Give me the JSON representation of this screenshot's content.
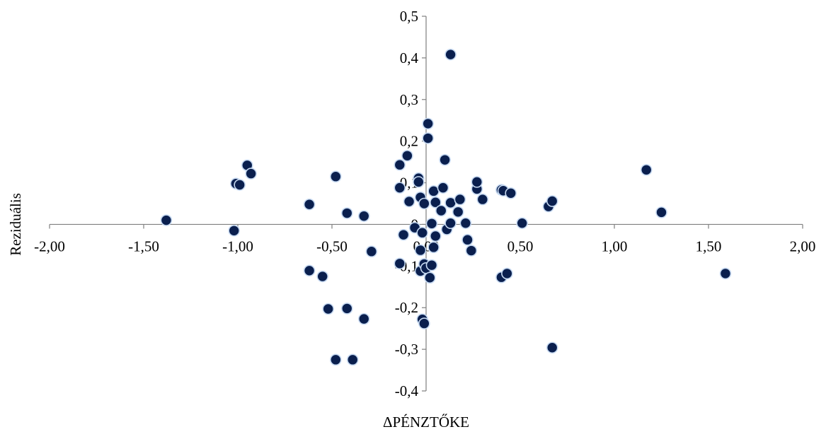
{
  "chart_data": {
    "type": "scatter",
    "title": "",
    "xlabel": "ΔPÉNZTŐKE",
    "ylabel": "Reziduális",
    "xlim": [
      -2.0,
      2.0
    ],
    "ylim": [
      -0.4,
      0.5
    ],
    "xticks": [
      -2.0,
      -1.5,
      -1.0,
      -0.5,
      0.0,
      0.5,
      1.0,
      1.5,
      2.0
    ],
    "xtick_labels": [
      "-2,00",
      "-1,50",
      "-1,00",
      "-0,50",
      "0,00",
      "0,50",
      "1,00",
      "1,50",
      "2,00"
    ],
    "yticks": [
      -0.4,
      -0.3,
      -0.2,
      -0.1,
      0.0,
      0.1,
      0.2,
      0.3,
      0.4,
      0.5
    ],
    "ytick_labels": [
      "-0,4",
      "-0,3",
      "-0,2",
      "-0,1",
      "0",
      "0,1",
      "0,2",
      "0,3",
      "0,4",
      "0,5"
    ],
    "grid": false,
    "legend": "none",
    "marker_color": "#0a1f4e",
    "marker_edge_color": "#c6d9f1",
    "axis_color": "#7f7f7f",
    "series": [
      {
        "points": [
          [
            -1.38,
            0.01
          ],
          [
            -1.02,
            -0.015
          ],
          [
            -1.01,
            0.098
          ],
          [
            -0.99,
            0.095
          ],
          [
            -0.95,
            0.142
          ],
          [
            -0.93,
            0.122
          ],
          [
            -0.62,
            0.048
          ],
          [
            -0.62,
            -0.111
          ],
          [
            -0.55,
            -0.125
          ],
          [
            -0.52,
            -0.203
          ],
          [
            -0.48,
            0.115
          ],
          [
            -0.48,
            -0.325
          ],
          [
            -0.42,
            0.027
          ],
          [
            -0.42,
            -0.202
          ],
          [
            -0.39,
            -0.325
          ],
          [
            -0.33,
            0.02
          ],
          [
            -0.33,
            -0.227
          ],
          [
            -0.29,
            -0.065
          ],
          [
            -0.14,
            -0.094
          ],
          [
            -0.14,
            0.143
          ],
          [
            -0.14,
            0.088
          ],
          [
            -0.12,
            -0.025
          ],
          [
            -0.1,
            0.165
          ],
          [
            -0.09,
            0.055
          ],
          [
            -0.06,
            -0.008
          ],
          [
            -0.04,
            0.111
          ],
          [
            -0.04,
            0.102
          ],
          [
            -0.03,
            0.065
          ],
          [
            -0.03,
            -0.062
          ],
          [
            -0.03,
            -0.112
          ],
          [
            -0.02,
            -0.02
          ],
          [
            -0.02,
            -0.228
          ],
          [
            -0.01,
            -0.095
          ],
          [
            -0.01,
            -0.238
          ],
          [
            -0.01,
            0.05
          ],
          [
            0.0,
            -0.105
          ],
          [
            0.01,
            0.242
          ],
          [
            0.01,
            0.207
          ],
          [
            0.02,
            -0.128
          ],
          [
            0.03,
            0.002
          ],
          [
            0.03,
            -0.098
          ],
          [
            0.04,
            0.08
          ],
          [
            0.04,
            -0.055
          ],
          [
            0.05,
            0.053
          ],
          [
            0.05,
            -0.028
          ],
          [
            0.08,
            0.033
          ],
          [
            0.09,
            0.088
          ],
          [
            0.1,
            0.155
          ],
          [
            0.11,
            -0.012
          ],
          [
            0.13,
            0.408
          ],
          [
            0.13,
            0.003
          ],
          [
            0.13,
            0.052
          ],
          [
            0.17,
            0.03
          ],
          [
            0.18,
            0.06
          ],
          [
            0.21,
            0.003
          ],
          [
            0.22,
            -0.037
          ],
          [
            0.24,
            -0.063
          ],
          [
            0.27,
            0.085
          ],
          [
            0.27,
            0.102
          ],
          [
            0.3,
            0.06
          ],
          [
            0.4,
            0.083
          ],
          [
            0.4,
            -0.127
          ],
          [
            0.41,
            0.081
          ],
          [
            0.43,
            -0.118
          ],
          [
            0.45,
            0.075
          ],
          [
            0.51,
            0.003
          ],
          [
            0.65,
            0.043
          ],
          [
            0.67,
            0.056
          ],
          [
            0.67,
            -0.296
          ],
          [
            1.17,
            0.131
          ],
          [
            1.25,
            0.029
          ],
          [
            1.59,
            -0.118
          ]
        ]
      }
    ]
  }
}
